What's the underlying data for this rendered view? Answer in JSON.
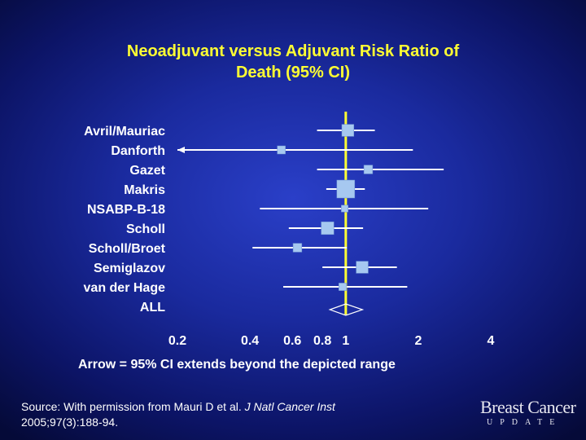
{
  "title": {
    "line1": "Neoadjuvant versus Adjuvant Risk Ratio of",
    "line2": "Death (95% CI)"
  },
  "note": "Arrow = 95% CI extends beyond the depicted range",
  "source": {
    "prefix": "Source: With permission from Mauri D et al. ",
    "journal": "J Natl Cancer Inst",
    "citation": "2005;97(3):188-94."
  },
  "logo": {
    "main": "Breast Cancer",
    "sub": "UPDATE"
  },
  "colors": {
    "marker": "#a6c8f0",
    "ci_line": "#ffffff",
    "reference_line": "#ffff33",
    "title": "#ffff33"
  },
  "chart_data": {
    "type": "forest",
    "x_scale": "log",
    "xlim": [
      0.2,
      4
    ],
    "x_ticks": [
      {
        "value": 0.2,
        "label": "0.2"
      },
      {
        "value": 0.4,
        "label": "0.4"
      },
      {
        "value": 0.6,
        "label": "0.6"
      },
      {
        "value": 0.8,
        "label": "0.8"
      },
      {
        "value": 1,
        "label": "1"
      },
      {
        "value": 2,
        "label": "2"
      },
      {
        "value": 4,
        "label": "4"
      }
    ],
    "reference_value": 1,
    "studies": [
      {
        "label": "Avril/Mauriac",
        "rr": 1.02,
        "lower": 0.76,
        "upper": 1.32,
        "weight": 0.55,
        "arrow_left": false
      },
      {
        "label": "Danforth",
        "rr": 0.54,
        "lower": 0.2,
        "upper": 1.9,
        "weight": 0.25,
        "arrow_left": true
      },
      {
        "label": "Gazet",
        "rr": 1.24,
        "lower": 0.76,
        "upper": 2.55,
        "weight": 0.3,
        "arrow_left": false
      },
      {
        "label": "Makris",
        "rr": 1.0,
        "lower": 0.83,
        "upper": 1.2,
        "weight": 1.0,
        "arrow_left": false
      },
      {
        "label": "NSABP-B-18",
        "rr": 0.99,
        "lower": 0.44,
        "upper": 2.2,
        "weight": 0.15,
        "arrow_left": false
      },
      {
        "label": "Scholl",
        "rr": 0.84,
        "lower": 0.58,
        "upper": 1.18,
        "weight": 0.6,
        "arrow_left": false
      },
      {
        "label": "Scholl/Broet",
        "rr": 0.63,
        "lower": 0.41,
        "upper": 1.01,
        "weight": 0.3,
        "arrow_left": false
      },
      {
        "label": "Semiglazov",
        "rr": 1.17,
        "lower": 0.8,
        "upper": 1.63,
        "weight": 0.55,
        "arrow_left": false
      },
      {
        "label": "van der Hage",
        "rr": 0.97,
        "lower": 0.55,
        "upper": 1.8,
        "weight": 0.2,
        "arrow_left": false
      }
    ],
    "summary": {
      "label": "ALL",
      "rr": 1.0,
      "lower": 0.9,
      "upper": 1.12
    }
  }
}
